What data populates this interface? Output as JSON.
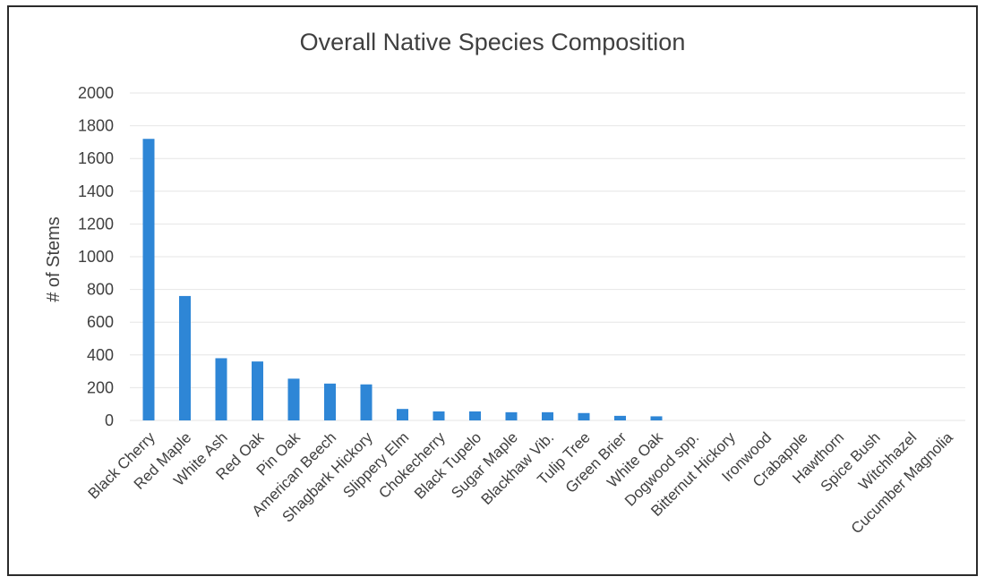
{
  "chart_data": {
    "type": "bar",
    "title": "Overall Native Species Composition",
    "xlabel": "",
    "ylabel": "# of Stems",
    "ylim": [
      0,
      2000
    ],
    "yticks": [
      0,
      200,
      400,
      600,
      800,
      1000,
      1200,
      1400,
      1600,
      1800,
      2000
    ],
    "grid": true,
    "legend": "none",
    "bar_color": "#2e86d6",
    "categories": [
      "Black Cherry",
      "Red Maple",
      "White Ash",
      "Red Oak",
      "Pin Oak",
      "American Beech",
      "Shagbark Hickory",
      "Slippery Elm",
      "Chokecherry",
      "Black Tupelo",
      "Sugar Maple",
      "Blackhaw Vib.",
      "Tulip Tree",
      "Green Brier",
      "White Oak",
      "Dogwood spp.",
      "Bitternut Hickory",
      "Ironwood",
      "Crabapple",
      "Hawthorn",
      "Spice Bush",
      "Witchhazel",
      "Cucumber Magnolia"
    ],
    "values": [
      1720,
      760,
      380,
      360,
      255,
      225,
      220,
      70,
      55,
      55,
      50,
      50,
      45,
      28,
      25,
      0,
      0,
      0,
      0,
      0,
      0,
      0,
      0
    ]
  }
}
